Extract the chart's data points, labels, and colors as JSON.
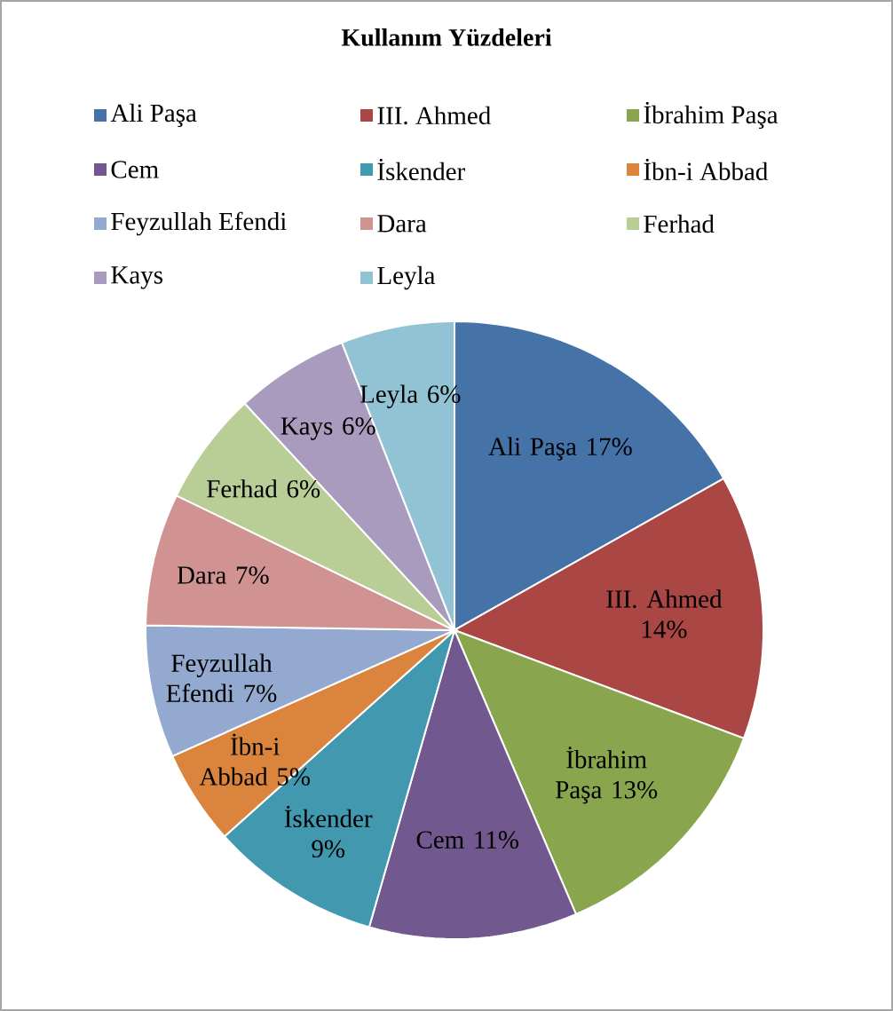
{
  "chart_data": {
    "type": "pie",
    "title": "Kullanım Yüzdeleri",
    "categories": [
      "Ali Paşa",
      "III. Ahmed",
      "İbrahim Paşa",
      "Cem",
      "İskender",
      "İbn-i Abbad",
      "Feyzullah Efendi",
      "Dara",
      "Ferhad",
      "Kays",
      "Leyla"
    ],
    "values": [
      17,
      14,
      13,
      11,
      9,
      5,
      7,
      7,
      6,
      6,
      6
    ],
    "value_labels": [
      "17%",
      "14%",
      "13%",
      "11%",
      "9%",
      "5%",
      "7%",
      "7%",
      "6%",
      "6%",
      "6%"
    ],
    "colors": [
      "#4572a7",
      "#aa4643",
      "#89a54e",
      "#71588f",
      "#4198af",
      "#db843d",
      "#93a9cf",
      "#d19392",
      "#b9cd96",
      "#a99bbd",
      "#92c3d4"
    ],
    "legend": "top"
  }
}
